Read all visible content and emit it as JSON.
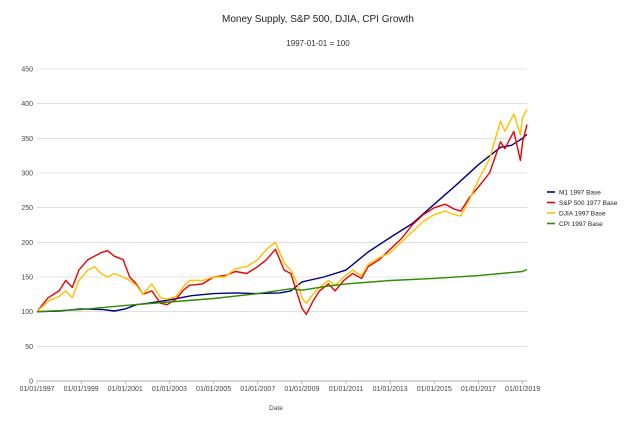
{
  "chart_data": {
    "type": "line",
    "title": "Money Supply, S&P 500, DJIA, CPI Growth",
    "subtitle": "1997-01-01 = 100",
    "xlabel": "Date",
    "ylabel": "",
    "ylim": [
      0,
      450
    ],
    "yticks": [
      "0",
      "50",
      "100",
      "150",
      "200",
      "250",
      "300",
      "350",
      "400",
      "450"
    ],
    "xlim": [
      1997.0,
      2019.2
    ],
    "xticks": [
      {
        "year": 1997,
        "label": "01/01/1997"
      },
      {
        "year": 1999,
        "label": "01/01/1999"
      },
      {
        "year": 2001,
        "label": "01/01/2001"
      },
      {
        "year": 2003,
        "label": "01/01/2003"
      },
      {
        "year": 2005,
        "label": "01/01/2005"
      },
      {
        "year": 2007,
        "label": "01/01/2007"
      },
      {
        "year": 2009,
        "label": "01/01/2009"
      },
      {
        "year": 2011,
        "label": "01/01/2011"
      },
      {
        "year": 2013,
        "label": "01/01/2013"
      },
      {
        "year": 2015,
        "label": "01/01/2015"
      },
      {
        "year": 2017,
        "label": "01/01/2017"
      },
      {
        "year": 2019,
        "label": "01/01/2019"
      }
    ],
    "grid": true,
    "legend_position": "right",
    "series": [
      {
        "name": "M1 1997 Base",
        "color": "#000080",
        "x": [
          1997.0,
          1998.0,
          1999.0,
          2000.0,
          2000.5,
          2001.0,
          2001.5,
          2002.0,
          2003.0,
          2004.0,
          2005.0,
          2006.0,
          2007.0,
          2008.0,
          2008.5,
          2009.0,
          2010.0,
          2011.0,
          2012.0,
          2013.0,
          2014.0,
          2015.0,
          2016.0,
          2017.0,
          2018.0,
          2018.5,
          2019.0,
          2019.2
        ],
        "y": [
          100,
          101,
          104,
          103,
          101,
          104,
          110,
          112,
          117,
          123,
          126,
          127,
          126,
          127,
          130,
          143,
          150,
          160,
          186,
          207,
          227,
          255,
          283,
          312,
          337,
          340,
          350,
          356
        ]
      },
      {
        "name": "S&P 500 1977 Base",
        "color": "#ee0000",
        "x": [
          1997.0,
          1997.5,
          1998.0,
          1998.3,
          1998.6,
          1998.9,
          1999.3,
          1999.6,
          1999.9,
          2000.2,
          2000.5,
          2000.9,
          2001.2,
          2001.5,
          2001.8,
          2002.2,
          2002.6,
          2002.9,
          2003.3,
          2003.6,
          2003.9,
          2004.5,
          2005.0,
          2005.5,
          2006.0,
          2006.5,
          2007.0,
          2007.4,
          2007.8,
          2008.2,
          2008.5,
          2008.8,
          2009.0,
          2009.2,
          2009.5,
          2009.8,
          2010.2,
          2010.5,
          2010.9,
          2011.3,
          2011.7,
          2012.0,
          2012.5,
          2013.0,
          2013.5,
          2014.0,
          2014.5,
          2015.0,
          2015.5,
          2015.9,
          2016.2,
          2016.6,
          2017.0,
          2017.5,
          2018.0,
          2018.2,
          2018.6,
          2018.9,
          2019.0,
          2019.2
        ],
        "y": [
          100,
          120,
          130,
          145,
          135,
          160,
          175,
          180,
          185,
          188,
          180,
          175,
          150,
          140,
          125,
          130,
          112,
          110,
          118,
          130,
          138,
          140,
          150,
          152,
          158,
          155,
          165,
          175,
          190,
          160,
          155,
          125,
          105,
          96,
          115,
          130,
          140,
          130,
          145,
          155,
          148,
          165,
          175,
          190,
          205,
          225,
          240,
          250,
          255,
          248,
          245,
          265,
          280,
          300,
          345,
          335,
          360,
          318,
          345,
          370
        ]
      },
      {
        "name": "DJIA 1997 Base",
        "color": "#ffc000",
        "x": [
          1997.0,
          1997.5,
          1998.0,
          1998.3,
          1998.6,
          1998.9,
          1999.3,
          1999.6,
          1999.9,
          2000.2,
          2000.5,
          2000.9,
          2001.2,
          2001.5,
          2001.8,
          2002.2,
          2002.6,
          2002.9,
          2003.3,
          2003.6,
          2003.9,
          2004.5,
          2005.0,
          2005.5,
          2006.0,
          2006.5,
          2007.0,
          2007.4,
          2007.8,
          2008.2,
          2008.5,
          2008.8,
          2009.0,
          2009.2,
          2009.5,
          2009.8,
          2010.2,
          2010.5,
          2010.9,
          2011.3,
          2011.7,
          2012.0,
          2012.5,
          2013.0,
          2013.5,
          2014.0,
          2014.5,
          2015.0,
          2015.5,
          2015.9,
          2016.2,
          2016.6,
          2017.0,
          2017.5,
          2018.0,
          2018.2,
          2018.6,
          2018.9,
          2019.0,
          2019.2
        ],
        "y": [
          100,
          115,
          122,
          130,
          120,
          145,
          160,
          165,
          155,
          150,
          155,
          150,
          145,
          138,
          125,
          140,
          120,
          118,
          122,
          135,
          145,
          145,
          150,
          150,
          162,
          165,
          175,
          190,
          200,
          170,
          160,
          140,
          120,
          112,
          125,
          135,
          145,
          138,
          150,
          160,
          152,
          168,
          178,
          185,
          200,
          215,
          230,
          240,
          245,
          240,
          238,
          262,
          290,
          320,
          375,
          360,
          385,
          355,
          380,
          392
        ]
      },
      {
        "name": "CPI 1997 Base",
        "color": "#2e8b00",
        "x": [
          1997.0,
          1999.0,
          2001.0,
          2003.0,
          2005.0,
          2007.0,
          2008.5,
          2009.0,
          2010.0,
          2011.0,
          2013.0,
          2015.0,
          2017.0,
          2019.0,
          2019.2
        ],
        "y": [
          100,
          103,
          109,
          114,
          119,
          126,
          133,
          131,
          136,
          140,
          145,
          148,
          152,
          158,
          161
        ]
      }
    ]
  }
}
